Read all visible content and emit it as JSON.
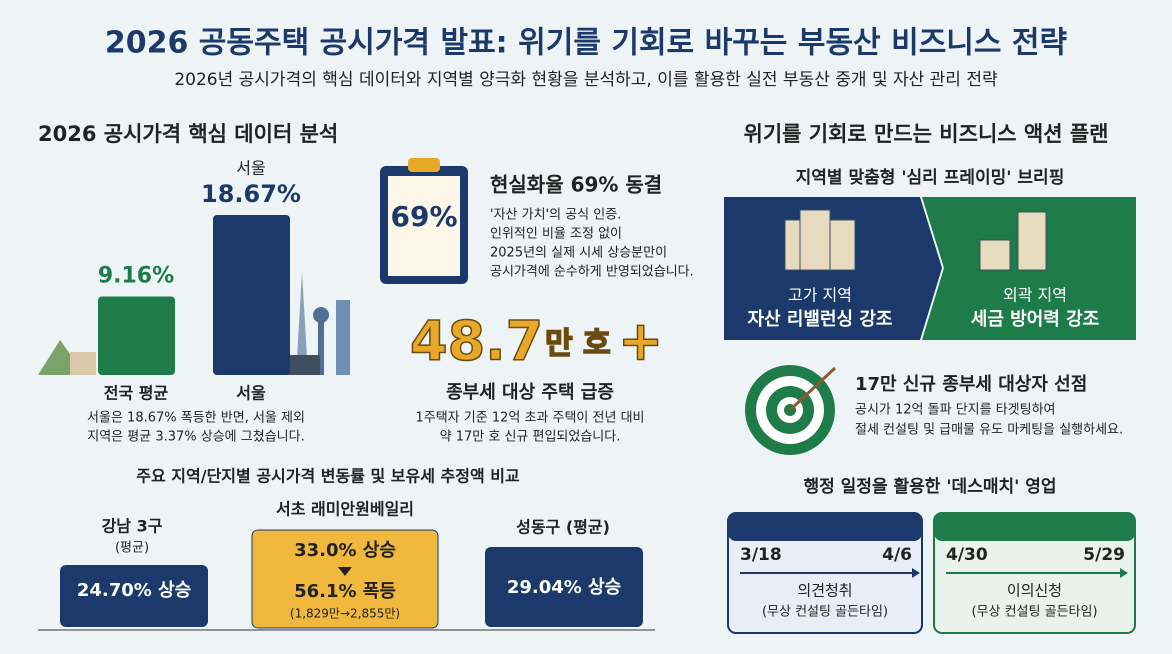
{
  "header": {
    "title": "2026 공동주택 공시가격 발표: 위기를 기회로 바꾸는 부동산 비즈니스 전략",
    "subtitle": "2026년 공시가격의 핵심 데이터와 지역별 양극화 현황을 분석하고, 이를 활용한 실전 부동산 중개 및 자산 관리 전략"
  },
  "left": {
    "heading": "2026 공시가격 핵심 데이터 분석",
    "bar_chart": {
      "bars": [
        {
          "category": "전국 평균",
          "value": 9.16,
          "value_label": "9.16%",
          "color": "#1e7b4a"
        },
        {
          "category": "서울",
          "top_label": "서울",
          "value": 18.67,
          "value_label": "18.67%",
          "color": "#1b3a6b"
        }
      ],
      "note": [
        "서울은 18.67% 폭등한 반면, 서울 제외",
        "지역은 평균 3.37% 상승에 그쳤습니다."
      ]
    },
    "reality_card": {
      "badge": "69%",
      "title": "현실화율 69% 동결",
      "lines": [
        "'자산 가치'의 공식 인증.",
        "인위적인 비율 조정 없이",
        "2025년의 실제 시세 상승분만이",
        "공시가격에 순수하게 반영되었습니다."
      ]
    },
    "count_card": {
      "number": "48.7",
      "unit": "만 호",
      "plus": "+",
      "title": "종부세 대상 주택 급증",
      "lines": [
        "1주택자 기준 12억 초과 주택이 전년 대비",
        "약 17만 호 신규 편입되었습니다."
      ]
    },
    "comparison": {
      "title": "주요 지역/단지별 공시가격 변동률 및 보유세 추정액 비교",
      "items": [
        {
          "name": "강남 3구",
          "sub": "(평균)",
          "value": "24.70% 상승"
        },
        {
          "name": "서초 래미안원베일리",
          "value": "33.0% 상승",
          "value2": "56.1% 폭등",
          "detail": "(1,829만→2,855만)"
        },
        {
          "name": "성동구 (평균)",
          "value": "29.04% 상승"
        }
      ]
    }
  },
  "right": {
    "heading": "위기를 기회로 만드는 비즈니스 액션 플랜",
    "framing": {
      "title": "지역별 맞춤형 '심리 프레이밍' 브리핑",
      "panels": [
        {
          "label": "고가 지역",
          "message": "자산 리밸런싱 강조"
        },
        {
          "label": "외곽 지역",
          "message": "세금 방어력 강조"
        }
      ]
    },
    "target": {
      "title": "17만 신규 종부세 대상자 선점",
      "lines": [
        "공시가 12억 돌파 단지를 타겟팅하여",
        "절세 컨설팅 및 급매물 유도 마케팅을 실행하세요."
      ]
    },
    "schedule": {
      "title": "행정 일정을 활용한 '데스매치' 영업",
      "calendars": [
        {
          "start": "3/18",
          "end": "4/6",
          "label": "의견청취",
          "sub": "(무상 컨설팅 골든타임)"
        },
        {
          "start": "4/30",
          "end": "5/29",
          "label": "이의신청",
          "sub": "(무상 컨설팅 골든타임)"
        }
      ]
    }
  }
}
